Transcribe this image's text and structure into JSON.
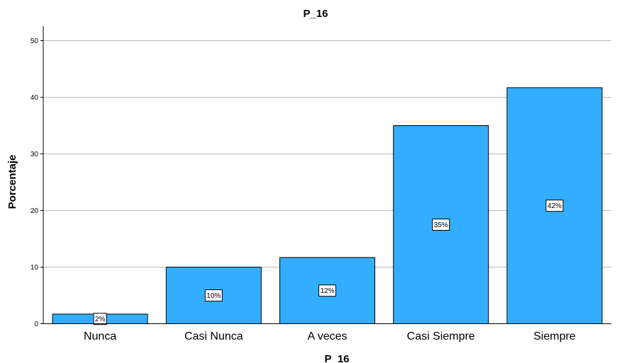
{
  "chart_data": {
    "type": "bar",
    "title": "P_16",
    "xlabel": "P_16",
    "ylabel": "Porcentaje",
    "categories": [
      "Nunca",
      "Casi Nunca",
      "A veces",
      "Casi Siempre",
      "Siempre"
    ],
    "values": [
      1.7,
      10.0,
      11.7,
      35.0,
      41.7
    ],
    "data_labels": [
      "2%",
      "10%",
      "12%",
      "35%",
      "42%"
    ],
    "ylim": [
      0,
      52.5
    ],
    "yticks": [
      0,
      10,
      20,
      30,
      40,
      50
    ],
    "grid": true,
    "bar_color": "#33adff"
  }
}
